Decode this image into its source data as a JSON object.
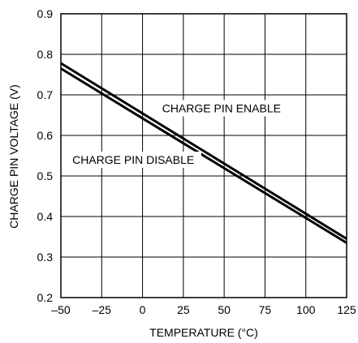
{
  "chart_data": {
    "type": "line",
    "title": "",
    "xlabel": "TEMPERATURE (°C)",
    "ylabel": "CHARGE PIN VOLTAGE (V)",
    "xlim": [
      -50,
      125
    ],
    "ylim": [
      0.2,
      0.9
    ],
    "x_ticks": [
      "–50",
      "–25",
      "0",
      "25",
      "50",
      "75",
      "100",
      "125"
    ],
    "x_tick_values": [
      -50,
      -25,
      0,
      25,
      50,
      75,
      100,
      125
    ],
    "y_ticks": [
      "0.2",
      "0.3",
      "0.4",
      "0.5",
      "0.6",
      "0.7",
      "0.8",
      "0.9"
    ],
    "y_tick_values": [
      0.2,
      0.3,
      0.4,
      0.5,
      0.6,
      0.7,
      0.8,
      0.9
    ],
    "grid": true,
    "series": [
      {
        "name": "CHARGE PIN ENABLE",
        "x": [
          -50,
          125
        ],
        "values": [
          0.778,
          0.345
        ]
      },
      {
        "name": "CHARGE PIN DISABLE",
        "x": [
          -50,
          125
        ],
        "values": [
          0.765,
          0.335
        ]
      }
    ],
    "annotations": [
      {
        "text": "CHARGE PIN ENABLE",
        "x": 12,
        "y": 0.657
      },
      {
        "text": "CHARGE PIN DISABLE",
        "x": -43,
        "y": 0.53
      }
    ],
    "colors": {
      "line": "#000000",
      "grid": "#000000"
    }
  }
}
